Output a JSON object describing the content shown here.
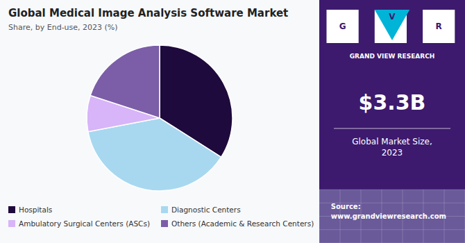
{
  "chart_data": {
    "type": "pie",
    "title": "Global Medical Image Analysis Software Market",
    "subtitle": "Share, by End-use, 2023 (%)",
    "categories": [
      "Hospitals",
      "Diagnostic Centers",
      "Ambulatory Surgical Centers (ASCs)",
      "Others (Academic & Research Centers)"
    ],
    "values": [
      34,
      38,
      8,
      20
    ],
    "colors": [
      "#1e0a3c",
      "#a8d8f0",
      "#d8b4f8",
      "#7b5ea7"
    ],
    "legend": "bottom",
    "annotations": [
      "G",
      "V",
      "R",
      "GRAND VIEW RESEARCH",
      "$3.3B",
      "Global Market Size,\n2023",
      "Source:\nwww.grandviewresearch.com"
    ]
  }
}
